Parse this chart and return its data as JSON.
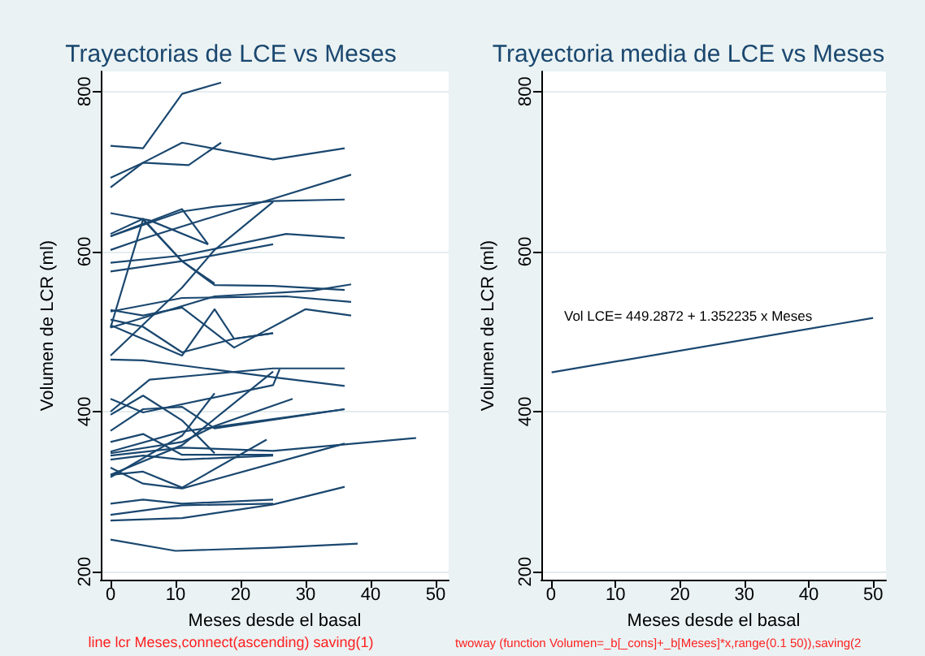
{
  "chart_data": [
    {
      "type": "line",
      "title": "Trayectorias de LCE vs Meses",
      "xlabel": "Meses desde el basal",
      "ylabel": "Volumen de LCR (ml)",
      "xlim": [
        -1.5,
        52
      ],
      "xticks": [
        0,
        10,
        20,
        30,
        40,
        50
      ],
      "ylim": [
        190,
        825
      ],
      "yticks": [
        200,
        400,
        600,
        800
      ],
      "grid": "y",
      "annotations": [
        "line lcr Meses,connect(ascending) saving(1)"
      ],
      "series": [
        {
          "color": "#1a476f",
          "x": [
            0,
            5,
            11,
            17
          ],
          "values": [
            732,
            729,
            797,
            811
          ]
        },
        {
          "color": "#1a476f",
          "x": [
            0,
            5,
            11,
            25,
            36
          ],
          "values": [
            692,
            711,
            736,
            715,
            729
          ]
        },
        {
          "color": "#1a476f",
          "x": [
            0,
            5,
            12,
            17
          ],
          "values": [
            680,
            711,
            708,
            736
          ]
        },
        {
          "color": "#1a476f",
          "x": [
            0,
            6,
            15
          ],
          "values": [
            648,
            639,
            609
          ]
        },
        {
          "color": "#1a476f",
          "x": [
            0,
            11,
            16,
            25,
            36
          ],
          "values": [
            619,
            650,
            656,
            663,
            665
          ]
        },
        {
          "color": "#1a476f",
          "x": [
            0,
            5,
            16,
            25,
            37
          ],
          "values": [
            602,
            616,
            644,
            666,
            696
          ]
        },
        {
          "color": "#1a476f",
          "x": [
            0,
            11,
            27,
            36
          ],
          "values": [
            586,
            595,
            622,
            617
          ]
        },
        {
          "color": "#1a476f",
          "x": [
            0,
            11,
            15
          ],
          "values": [
            619,
            653,
            609
          ]
        },
        {
          "color": "#1a476f",
          "x": [
            0,
            5,
            11,
            16,
            25,
            36
          ],
          "values": [
            622,
            641,
            588,
            558,
            557,
            552
          ]
        },
        {
          "color": "#1a476f",
          "x": [
            0,
            5,
            11,
            16
          ],
          "values": [
            505,
            640,
            588,
            560
          ]
        },
        {
          "color": "#1a476f",
          "x": [
            0,
            11,
            16,
            25
          ],
          "values": [
            470,
            555,
            602,
            662
          ]
        },
        {
          "color": "#1a476f",
          "x": [
            0,
            11,
            25
          ],
          "values": [
            575,
            588,
            609
          ]
        },
        {
          "color": "#1a476f",
          "x": [
            0,
            11,
            27,
            37
          ],
          "values": [
            525,
            542,
            544,
            537
          ]
        },
        {
          "color": "#1a476f",
          "x": [
            0,
            16,
            31,
            37
          ],
          "values": [
            505,
            544,
            551,
            559
          ]
        },
        {
          "color": "#1a476f",
          "x": [
            0,
            5,
            11,
            19,
            25
          ],
          "values": [
            515,
            506,
            474,
            491,
            498
          ]
        },
        {
          "color": "#1a476f",
          "x": [
            0,
            5,
            11,
            19,
            30,
            37
          ],
          "values": [
            527,
            520,
            530,
            480,
            528,
            520
          ]
        },
        {
          "color": "#1a476f",
          "x": [
            0,
            11,
            16,
            19,
            25
          ],
          "values": [
            508,
            470,
            528,
            491,
            498
          ]
        },
        {
          "color": "#1a476f",
          "x": [
            0,
            5,
            25,
            36
          ],
          "values": [
            465,
            464,
            443,
            432
          ]
        },
        {
          "color": "#1a476f",
          "x": [
            0,
            6,
            25,
            36
          ],
          "values": [
            400,
            440,
            454,
            454
          ]
        },
        {
          "color": "#1a476f",
          "x": [
            0,
            5,
            11,
            16,
            36
          ],
          "values": [
            376,
            403,
            406,
            379,
            403
          ]
        },
        {
          "color": "#1a476f",
          "x": [
            0,
            5,
            11,
            16
          ],
          "values": [
            396,
            420,
            389,
            348
          ]
        },
        {
          "color": "#1a476f",
          "x": [
            0,
            5,
            25,
            26
          ],
          "values": [
            416,
            399,
            433,
            453
          ]
        },
        {
          "color": "#1a476f",
          "x": [
            0,
            11,
            25
          ],
          "values": [
            321,
            358,
            450
          ]
        },
        {
          "color": "#1a476f",
          "x": [
            0,
            11,
            16,
            28
          ],
          "values": [
            348,
            362,
            382,
            416
          ]
        },
        {
          "color": "#1a476f",
          "x": [
            0,
            5,
            11,
            25
          ],
          "values": [
            362,
            372,
            346,
            346
          ]
        },
        {
          "color": "#1a476f",
          "x": [
            0,
            11,
            25,
            47
          ],
          "values": [
            345,
            355,
            351,
            367
          ]
        },
        {
          "color": "#1a476f",
          "x": [
            0,
            5,
            11,
            24
          ],
          "values": [
            321,
            325,
            305,
            365
          ]
        },
        {
          "color": "#1a476f",
          "x": [
            0,
            11,
            25
          ],
          "values": [
            271,
            283,
            285
          ]
        },
        {
          "color": "#1a476f",
          "x": [
            0,
            11,
            25,
            36
          ],
          "values": [
            264,
            267,
            284,
            306
          ]
        },
        {
          "color": "#1a476f",
          "x": [
            0,
            10,
            25,
            38
          ],
          "values": [
            240,
            226,
            230,
            235
          ]
        },
        {
          "color": "#1a476f",
          "x": [
            0,
            5,
            11,
            36
          ],
          "values": [
            330,
            310,
            304,
            360
          ]
        },
        {
          "color": "#1a476f",
          "x": [
            0,
            5,
            11,
            25
          ],
          "values": [
            340,
            345,
            340,
            345
          ]
        },
        {
          "color": "#1a476f",
          "x": [
            0,
            11,
            16
          ],
          "values": [
            318,
            370,
            423
          ]
        },
        {
          "color": "#1a476f",
          "x": [
            0,
            5,
            11,
            25
          ],
          "values": [
            285,
            290,
            285,
            290
          ]
        },
        {
          "color": "#1a476f",
          "x": [
            0,
            11,
            36
          ],
          "values": [
            350,
            375,
            403
          ]
        }
      ]
    },
    {
      "type": "line",
      "title": "Trayectoria media de LCE vs Meses",
      "xlabel": "Meses desde el basal",
      "ylabel": "Volumen de LCR (ml)",
      "xlim": [
        -1.5,
        52
      ],
      "xticks": [
        0,
        10,
        20,
        30,
        40,
        50
      ],
      "ylim": [
        190,
        825
      ],
      "yticks": [
        200,
        400,
        600,
        800
      ],
      "grid": "y",
      "annotations": [
        "Vol LCE= 449.2872 + 1.352235 x Meses",
        "twoway (function Volumen=_b[_cons]+_b[Meses]*x,range(0.1 50)),saving(2"
      ],
      "series": [
        {
          "color": "#1a476f",
          "x": [
            0.1,
            50
          ],
          "values": [
            449,
            517
          ]
        }
      ]
    }
  ]
}
